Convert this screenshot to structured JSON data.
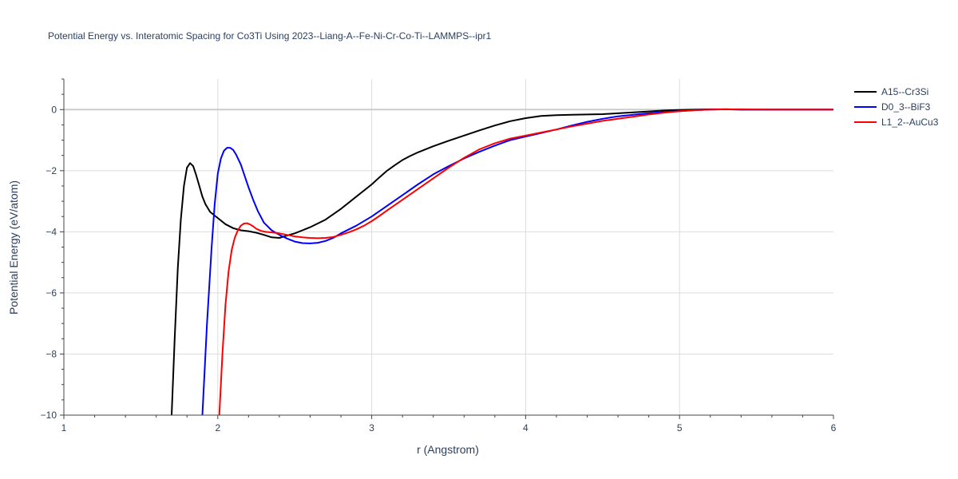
{
  "chart_data": {
    "type": "line",
    "title": "Potential Energy vs. Interatomic Spacing for Co3Ti Using 2023--Liang-A--Fe-Ni-Cr-Co-Ti--LAMMPS--ipr1",
    "xlabel": "r (Angstrom)",
    "ylabel": "Potential Energy (eV/atom)",
    "xlim": [
      1,
      6
    ],
    "ylim": [
      -10,
      1
    ],
    "xticks": [
      1,
      2,
      3,
      4,
      5,
      6
    ],
    "xtick_labels": [
      "1",
      "2",
      "3",
      "4",
      "5",
      "6"
    ],
    "yticks": [
      -10,
      -8,
      -6,
      -4,
      -2,
      0
    ],
    "ytick_labels": [
      "−10",
      "−8",
      "−6",
      "−4",
      "−2",
      "0"
    ],
    "grid": true,
    "legend_position": "top-right",
    "series": [
      {
        "name": "A15--Cr3Si",
        "color": "#000000",
        "x": [
          1.7,
          1.72,
          1.74,
          1.76,
          1.78,
          1.8,
          1.82,
          1.84,
          1.86,
          1.88,
          1.9,
          1.92,
          1.95,
          2.0,
          2.05,
          2.1,
          2.15,
          2.2,
          2.25,
          2.3,
          2.35,
          2.4,
          2.45,
          2.5,
          2.55,
          2.6,
          2.7,
          2.8,
          2.9,
          3.0,
          3.05,
          3.1,
          3.15,
          3.2,
          3.25,
          3.3,
          3.4,
          3.5,
          3.6,
          3.7,
          3.8,
          3.9,
          4.0,
          4.1,
          4.2,
          4.3,
          4.4,
          4.5,
          4.6,
          4.7,
          4.8,
          4.9,
          5.0,
          5.1,
          5.2,
          5.3,
          5.4,
          5.6,
          5.8,
          6.0
        ],
        "y": [
          -10.0,
          -7.5,
          -5.2,
          -3.6,
          -2.5,
          -1.9,
          -1.75,
          -1.85,
          -2.15,
          -2.5,
          -2.85,
          -3.1,
          -3.35,
          -3.55,
          -3.75,
          -3.88,
          -3.95,
          -3.98,
          -4.03,
          -4.1,
          -4.18,
          -4.2,
          -4.12,
          -4.05,
          -3.95,
          -3.85,
          -3.6,
          -3.25,
          -2.85,
          -2.45,
          -2.22,
          -2.0,
          -1.82,
          -1.65,
          -1.52,
          -1.4,
          -1.2,
          -1.02,
          -0.85,
          -0.68,
          -0.52,
          -0.38,
          -0.28,
          -0.21,
          -0.18,
          -0.17,
          -0.16,
          -0.15,
          -0.12,
          -0.09,
          -0.06,
          -0.03,
          -0.01,
          0.0,
          0.01,
          0.01,
          0.0,
          0.0,
          0.0,
          0.0
        ]
      },
      {
        "name": "D0_3--BiF3",
        "color": "#0000ff",
        "x": [
          1.9,
          1.93,
          1.96,
          1.98,
          2.0,
          2.02,
          2.04,
          2.06,
          2.08,
          2.1,
          2.12,
          2.15,
          2.18,
          2.2,
          2.23,
          2.26,
          2.3,
          2.35,
          2.4,
          2.45,
          2.5,
          2.55,
          2.6,
          2.65,
          2.7,
          2.75,
          2.8,
          2.9,
          3.0,
          3.1,
          3.2,
          3.3,
          3.4,
          3.5,
          3.6,
          3.7,
          3.8,
          3.9,
          4.0,
          4.1,
          4.2,
          4.3,
          4.4,
          4.5,
          4.6,
          4.7,
          4.8,
          4.9,
          5.0,
          5.1,
          5.2,
          5.3,
          5.4,
          5.6,
          5.8,
          6.0
        ],
        "y": [
          -10.0,
          -7.0,
          -4.5,
          -3.1,
          -2.1,
          -1.6,
          -1.35,
          -1.25,
          -1.25,
          -1.32,
          -1.48,
          -1.8,
          -2.25,
          -2.55,
          -2.95,
          -3.32,
          -3.7,
          -3.95,
          -4.1,
          -4.22,
          -4.32,
          -4.37,
          -4.38,
          -4.36,
          -4.3,
          -4.2,
          -4.05,
          -3.8,
          -3.5,
          -3.15,
          -2.8,
          -2.45,
          -2.12,
          -1.85,
          -1.6,
          -1.38,
          -1.18,
          -1.0,
          -0.88,
          -0.77,
          -0.65,
          -0.52,
          -0.4,
          -0.3,
          -0.22,
          -0.17,
          -0.12,
          -0.08,
          -0.05,
          -0.02,
          0.0,
          0.01,
          0.0,
          0.0,
          0.0,
          0.0
        ]
      },
      {
        "name": "L1_2--AuCu3",
        "color": "#ff0000",
        "x": [
          2.01,
          2.03,
          2.05,
          2.07,
          2.09,
          2.11,
          2.13,
          2.15,
          2.17,
          2.19,
          2.21,
          2.23,
          2.25,
          2.28,
          2.31,
          2.35,
          2.4,
          2.45,
          2.5,
          2.55,
          2.6,
          2.65,
          2.7,
          2.75,
          2.8,
          2.85,
          2.9,
          2.95,
          3.0,
          3.05,
          3.1,
          3.2,
          3.3,
          3.4,
          3.5,
          3.6,
          3.7,
          3.8,
          3.9,
          4.0,
          4.1,
          4.2,
          4.3,
          4.4,
          4.5,
          4.6,
          4.7,
          4.8,
          4.9,
          5.0,
          5.1,
          5.2,
          5.3,
          5.4,
          5.6,
          5.8,
          6.0
        ],
        "y": [
          -10.0,
          -8.0,
          -6.4,
          -5.3,
          -4.6,
          -4.2,
          -3.95,
          -3.8,
          -3.73,
          -3.72,
          -3.76,
          -3.82,
          -3.9,
          -3.97,
          -4.0,
          -4.02,
          -4.05,
          -4.1,
          -4.15,
          -4.18,
          -4.2,
          -4.21,
          -4.2,
          -4.17,
          -4.1,
          -4.02,
          -3.92,
          -3.8,
          -3.65,
          -3.48,
          -3.3,
          -2.95,
          -2.6,
          -2.25,
          -1.9,
          -1.58,
          -1.3,
          -1.1,
          -0.95,
          -0.85,
          -0.75,
          -0.65,
          -0.55,
          -0.46,
          -0.37,
          -0.3,
          -0.23,
          -0.16,
          -0.1,
          -0.05,
          -0.02,
          0.0,
          0.01,
          0.01,
          0.0,
          0.0,
          0.0
        ]
      }
    ]
  }
}
